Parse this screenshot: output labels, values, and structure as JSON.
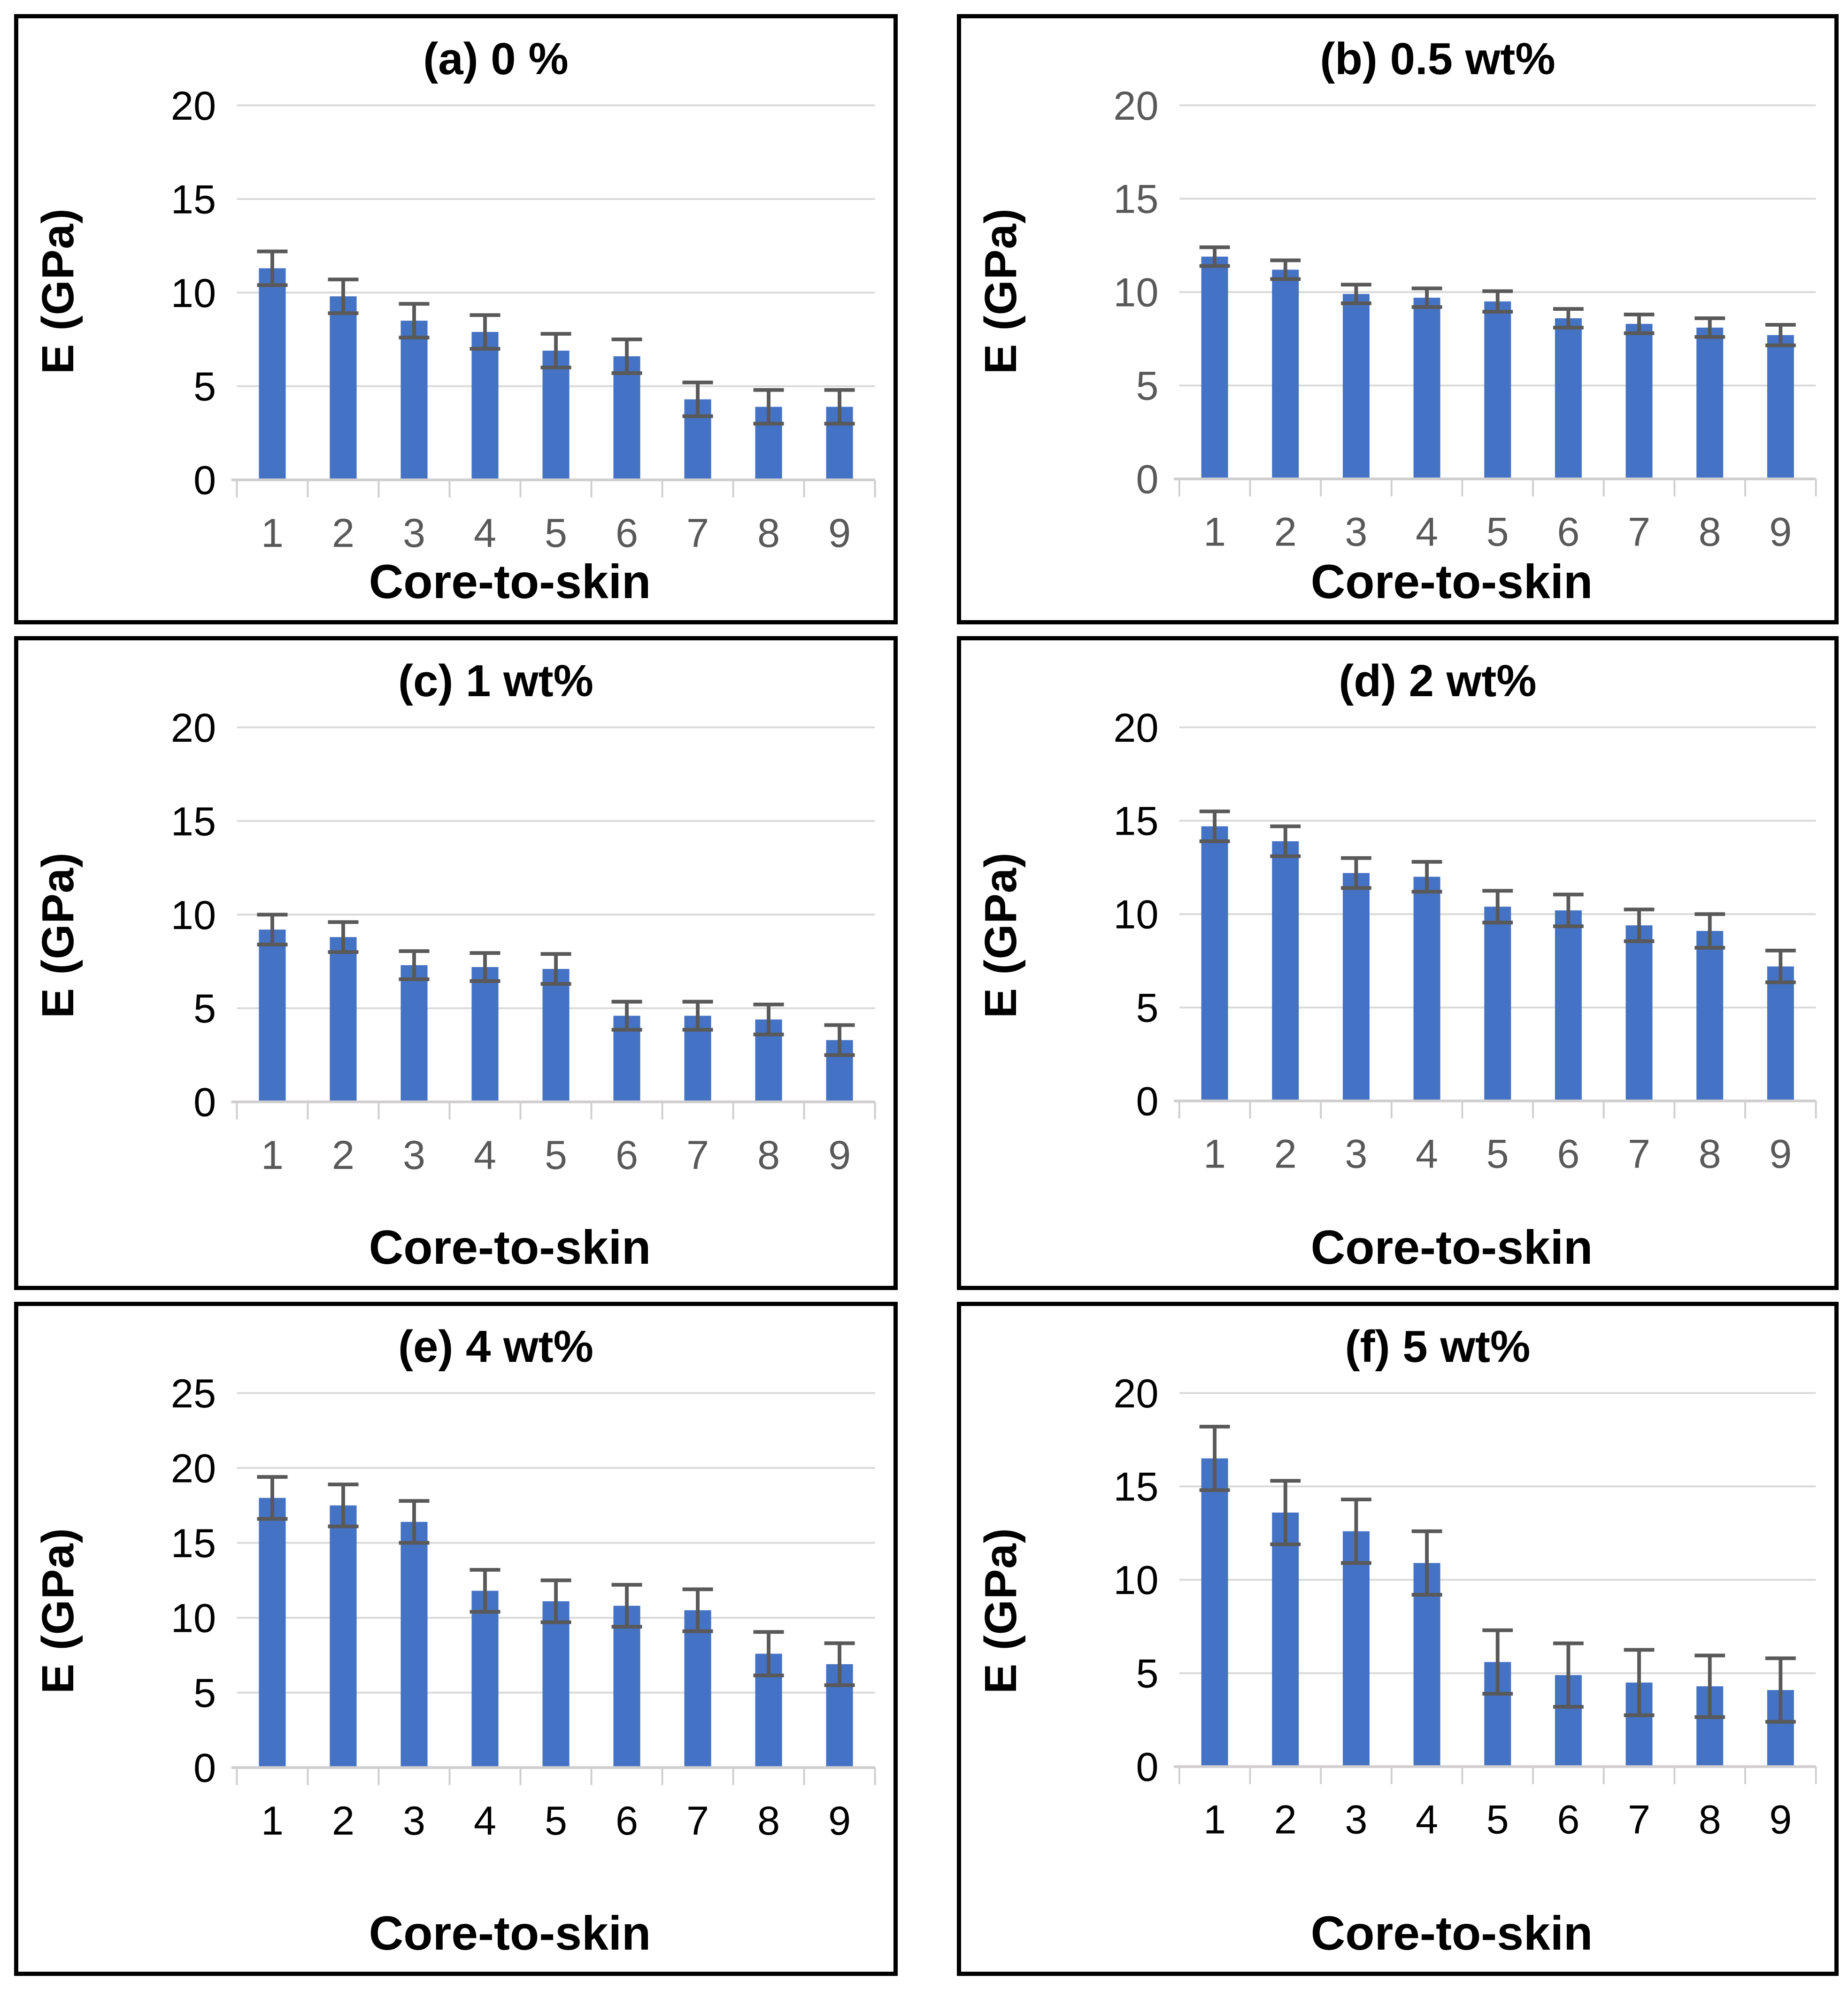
{
  "figure": {
    "background": "#ffffff",
    "panel_border_color": "#000000"
  },
  "chart_data": [
    {
      "id": "a",
      "type": "bar",
      "title": "(a) 0 %",
      "xlabel": "Core-to-skin",
      "ylabel": "E (GPa)",
      "categories": [
        "1",
        "2",
        "3",
        "4",
        "5",
        "6",
        "7",
        "8",
        "9"
      ],
      "values": [
        11.3,
        9.8,
        8.5,
        7.9,
        6.9,
        6.6,
        4.3,
        3.9,
        3.9
      ],
      "errors": [
        0.9,
        0.9,
        0.9,
        0.9,
        0.9,
        0.9,
        0.9,
        0.9,
        0.9
      ],
      "ylim": [
        0,
        20
      ],
      "yticks": [
        0,
        5,
        10,
        15,
        20
      ],
      "grid": true,
      "legend": "none",
      "bar_color": "#4472C4",
      "error_color": "#595959",
      "grid_color": "#D9D9D9",
      "axis_line_color": "#D0CECE",
      "ytick_color": "#000000",
      "xtick_color": "#595959"
    },
    {
      "id": "b",
      "type": "bar",
      "title": "(b) 0.5 wt%",
      "xlabel": "Core-to-skin",
      "ylabel": "E (GPa)",
      "categories": [
        "1",
        "2",
        "3",
        "4",
        "5",
        "6",
        "7",
        "8",
        "9"
      ],
      "values": [
        11.9,
        11.2,
        9.9,
        9.7,
        9.5,
        8.6,
        8.3,
        8.1,
        7.7
      ],
      "errors": [
        0.5,
        0.5,
        0.5,
        0.5,
        0.55,
        0.5,
        0.5,
        0.5,
        0.55
      ],
      "ylim": [
        0,
        20
      ],
      "yticks": [
        0,
        5,
        10,
        15,
        20
      ],
      "grid": true,
      "legend": "none",
      "bar_color": "#4472C4",
      "error_color": "#595959",
      "grid_color": "#D9D9D9",
      "axis_line_color": "#D0CECE",
      "ytick_color": "#595959",
      "xtick_color": "#595959"
    },
    {
      "id": "c",
      "type": "bar",
      "title": "(c) 1 wt%",
      "xlabel": "Core-to-skin",
      "ylabel": "E (GPa)",
      "categories": [
        "1",
        "2",
        "3",
        "4",
        "5",
        "6",
        "7",
        "8",
        "9"
      ],
      "values": [
        9.2,
        8.8,
        7.3,
        7.2,
        7.1,
        4.6,
        4.6,
        4.4,
        3.3
      ],
      "errors": [
        0.8,
        0.8,
        0.75,
        0.75,
        0.8,
        0.75,
        0.75,
        0.8,
        0.8
      ],
      "ylim": [
        0,
        20
      ],
      "yticks": [
        0,
        5,
        10,
        15,
        20
      ],
      "grid": true,
      "legend": "none",
      "bar_color": "#4472C4",
      "error_color": "#595959",
      "grid_color": "#D9D9D9",
      "axis_line_color": "#D0CECE",
      "ytick_color": "#000000",
      "xtick_color": "#595959"
    },
    {
      "id": "d",
      "type": "bar",
      "title": "(d) 2 wt%",
      "xlabel": "Core-to-skin",
      "ylabel": "E (GPa)",
      "categories": [
        "1",
        "2",
        "3",
        "4",
        "5",
        "6",
        "7",
        "8",
        "9"
      ],
      "values": [
        14.7,
        13.9,
        12.2,
        12.0,
        10.4,
        10.2,
        9.4,
        9.1,
        7.2
      ],
      "errors": [
        0.8,
        0.8,
        0.8,
        0.8,
        0.85,
        0.85,
        0.85,
        0.9,
        0.85
      ],
      "ylim": [
        0,
        20
      ],
      "yticks": [
        0,
        5,
        10,
        15,
        20
      ],
      "grid": true,
      "legend": "none",
      "bar_color": "#4472C4",
      "error_color": "#595959",
      "grid_color": "#D9D9D9",
      "axis_line_color": "#D0CECE",
      "ytick_color": "#000000",
      "xtick_color": "#595959"
    },
    {
      "id": "e",
      "type": "bar",
      "title": "(e) 4 wt%",
      "xlabel": "Core-to-skin",
      "ylabel": "E (GPa)",
      "categories": [
        "1",
        "2",
        "3",
        "4",
        "5",
        "6",
        "7",
        "8",
        "9"
      ],
      "values": [
        18.0,
        17.5,
        16.4,
        11.8,
        11.1,
        10.8,
        10.5,
        7.6,
        6.9
      ],
      "errors": [
        1.4,
        1.4,
        1.4,
        1.4,
        1.4,
        1.4,
        1.4,
        1.45,
        1.4
      ],
      "ylim": [
        0,
        25
      ],
      "yticks": [
        0,
        5,
        10,
        15,
        20,
        25
      ],
      "grid": true,
      "legend": "none",
      "bar_color": "#4472C4",
      "error_color": "#595959",
      "grid_color": "#D9D9D9",
      "axis_line_color": "#D0CECE",
      "ytick_color": "#000000",
      "xtick_color": "#000000"
    },
    {
      "id": "f",
      "type": "bar",
      "title": "(f) 5 wt%",
      "xlabel": "Core-to-skin",
      "ylabel": "E (GPa)",
      "categories": [
        "1",
        "2",
        "3",
        "4",
        "5",
        "6",
        "7",
        "8",
        "9"
      ],
      "values": [
        16.5,
        13.6,
        12.6,
        10.9,
        5.6,
        4.9,
        4.5,
        4.3,
        4.1
      ],
      "errors": [
        1.7,
        1.7,
        1.7,
        1.7,
        1.7,
        1.7,
        1.75,
        1.65,
        1.7
      ],
      "ylim": [
        0,
        20
      ],
      "yticks": [
        0,
        5,
        10,
        15,
        20
      ],
      "grid": true,
      "legend": "none",
      "bar_color": "#4472C4",
      "error_color": "#595959",
      "grid_color": "#D9D9D9",
      "axis_line_color": "#D0CECE",
      "ytick_color": "#000000",
      "xtick_color": "#000000"
    }
  ]
}
